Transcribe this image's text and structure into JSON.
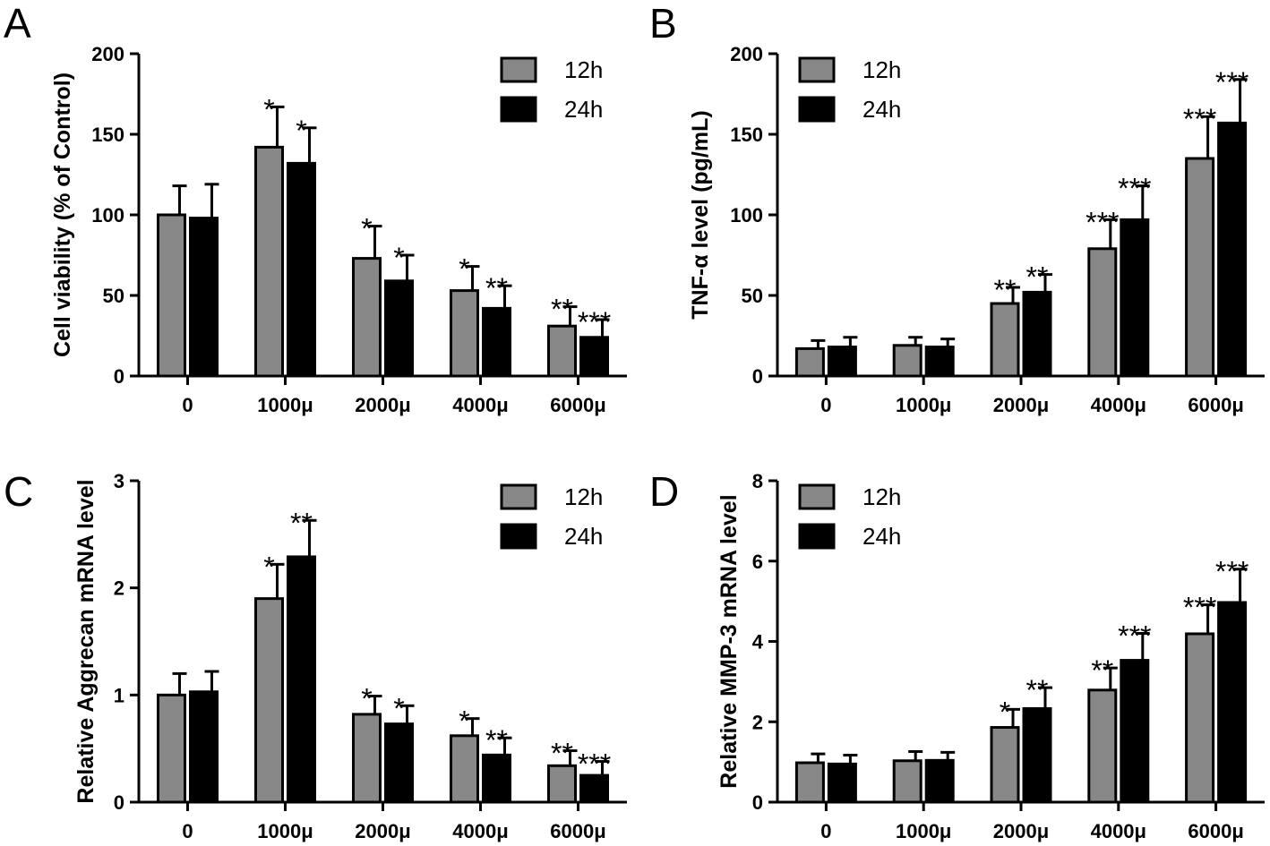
{
  "panel_letters": [
    "A",
    "B",
    "C",
    "D"
  ],
  "colors": {
    "h12": "#888888",
    "h24": "#000000"
  },
  "chart_data": [
    {
      "type": "bar",
      "panel": "A",
      "categories": [
        "0",
        "1000μ",
        "2000μ",
        "4000μ",
        "6000μ"
      ],
      "ylabel": "Cell viability (% of Control)",
      "ylim": [
        0,
        200
      ],
      "yticks": [
        0,
        50,
        100,
        150,
        200
      ],
      "legend_position": "top-right",
      "series": [
        {
          "name": "12h",
          "values": [
            100,
            142,
            73,
            53,
            31
          ],
          "errors": [
            18,
            25,
            20,
            15,
            12
          ],
          "sig": [
            "",
            "*",
            "*",
            "*",
            "**"
          ]
        },
        {
          "name": "24h",
          "values": [
            98,
            132,
            59,
            42,
            24
          ],
          "errors": [
            21,
            22,
            16,
            14,
            11
          ],
          "sig": [
            "",
            "*",
            "*",
            "**",
            "***"
          ]
        }
      ]
    },
    {
      "type": "bar",
      "panel": "B",
      "categories": [
        "0",
        "1000μ",
        "2000μ",
        "4000μ",
        "6000μ"
      ],
      "ylabel": "TNF-α level (pg/mL)",
      "ylim": [
        0,
        200
      ],
      "yticks": [
        0,
        50,
        100,
        150,
        200
      ],
      "legend_position": "top-left",
      "series": [
        {
          "name": "12h",
          "values": [
            17,
            19,
            45,
            79,
            135
          ],
          "errors": [
            5,
            5,
            10,
            18,
            26
          ],
          "sig": [
            "",
            "",
            "**",
            "***",
            "***"
          ]
        },
        {
          "name": "24h",
          "values": [
            18,
            18,
            52,
            97,
            157
          ],
          "errors": [
            6,
            5,
            11,
            21,
            27
          ],
          "sig": [
            "",
            "",
            "**",
            "***",
            "***"
          ]
        }
      ]
    },
    {
      "type": "bar",
      "panel": "C",
      "categories": [
        "0",
        "1000μ",
        "2000μ",
        "4000μ",
        "6000μ"
      ],
      "ylabel": "Relative Aggrecan mRNA level",
      "ylim": [
        0,
        3
      ],
      "yticks": [
        0,
        1,
        2,
        3
      ],
      "legend_position": "top-right",
      "series": [
        {
          "name": "12h",
          "values": [
            1.0,
            1.9,
            0.82,
            0.62,
            0.34
          ],
          "errors": [
            0.2,
            0.32,
            0.17,
            0.16,
            0.14
          ],
          "sig": [
            "",
            "*",
            "*",
            "*",
            "**"
          ]
        },
        {
          "name": "24h",
          "values": [
            1.03,
            2.29,
            0.73,
            0.44,
            0.25
          ],
          "errors": [
            0.19,
            0.34,
            0.17,
            0.16,
            0.13
          ],
          "sig": [
            "",
            "**",
            "*",
            "**",
            "***"
          ]
        }
      ]
    },
    {
      "type": "bar",
      "panel": "D",
      "categories": [
        "0",
        "1000μ",
        "2000μ",
        "4000μ",
        "6000μ"
      ],
      "ylabel": "Relative MMP-3 mRNA level",
      "ylim": [
        0,
        8
      ],
      "yticks": [
        0,
        2,
        4,
        6,
        8
      ],
      "legend_position": "top-left",
      "series": [
        {
          "name": "12h",
          "values": [
            0.98,
            1.03,
            1.86,
            2.79,
            4.19
          ],
          "errors": [
            0.22,
            0.23,
            0.45,
            0.55,
            0.72
          ],
          "sig": [
            "",
            "",
            "*",
            "**",
            "***"
          ]
        },
        {
          "name": "24h",
          "values": [
            0.95,
            1.04,
            2.33,
            3.53,
            4.97
          ],
          "errors": [
            0.22,
            0.2,
            0.52,
            0.67,
            0.83
          ],
          "sig": [
            "",
            "",
            "**",
            "***",
            "***"
          ]
        }
      ]
    }
  ]
}
